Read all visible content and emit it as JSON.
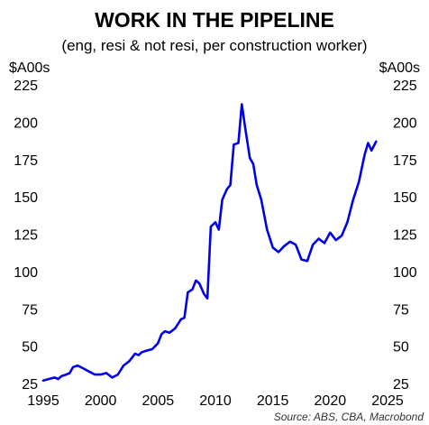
{
  "chart_data": {
    "type": "line",
    "title": "WORK IN THE PIPELINE",
    "subtitle": "(eng, resi & not resi, per construction worker)",
    "ylabel_left": "$A00s",
    "ylabel_right": "$A00s",
    "source": "Source: ABS, CBA, Macrobond",
    "xlim": [
      1995,
      2025
    ],
    "ylim": [
      25,
      225
    ],
    "x_ticks": [
      1995,
      2000,
      2005,
      2010,
      2015,
      2020,
      2025
    ],
    "y_ticks": [
      25,
      50,
      75,
      100,
      125,
      150,
      175,
      200,
      225
    ],
    "grid": false,
    "legend": "none",
    "series": [
      {
        "color": "#0000ee",
        "x": [
          1995.0,
          1995.5,
          1996.0,
          1996.3,
          1996.6,
          1997.0,
          1997.3,
          1997.6,
          1998.0,
          1998.5,
          1999.0,
          1999.5,
          2000.0,
          2000.5,
          2001.0,
          2001.5,
          2002.0,
          2002.5,
          2003.0,
          2003.3,
          2003.6,
          2004.0,
          2004.5,
          2005.0,
          2005.3,
          2005.6,
          2006.0,
          2006.5,
          2007.0,
          2007.3,
          2007.6,
          2008.0,
          2008.3,
          2008.6,
          2009.0,
          2009.3,
          2009.6,
          2010.0,
          2010.3,
          2010.6,
          2011.0,
          2011.3,
          2011.6,
          2012.0,
          2012.3,
          2012.6,
          2013.0,
          2013.3,
          2013.6,
          2014.0,
          2014.5,
          2015.0,
          2015.5,
          2016.0,
          2016.5,
          2017.0,
          2017.5,
          2018.0,
          2018.5,
          2019.0,
          2019.5,
          2020.0,
          2020.5,
          2021.0,
          2021.5,
          2022.0,
          2022.5,
          2023.0,
          2023.3,
          2023.6,
          2024.0
        ],
        "y": [
          27,
          28,
          29,
          28,
          30,
          31,
          32,
          36,
          37,
          35,
          33,
          31,
          31,
          32,
          29,
          31,
          37,
          40,
          45,
          44,
          46,
          47,
          48,
          52,
          58,
          60,
          59,
          62,
          68,
          69,
          86,
          88,
          94,
          92,
          85,
          82,
          130,
          133,
          128,
          148,
          155,
          158,
          185,
          186,
          212,
          196,
          176,
          172,
          158,
          148,
          128,
          116,
          113,
          117,
          120,
          118,
          108,
          107,
          118,
          122,
          119,
          126,
          121,
          124,
          133,
          148,
          160,
          178,
          186,
          181,
          187
        ]
      }
    ]
  }
}
